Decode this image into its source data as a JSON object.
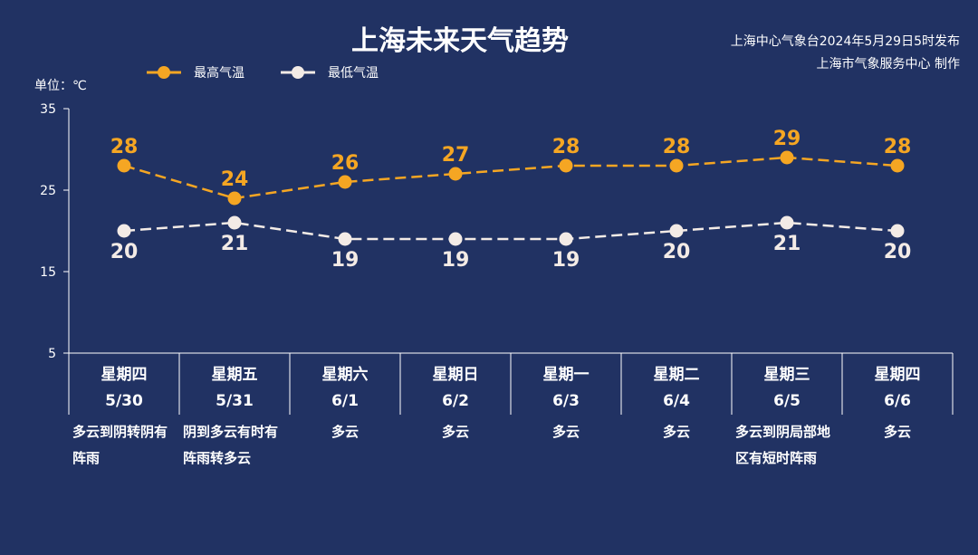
{
  "header": {
    "title": "上海未来天气趋势",
    "issuer_line1": "上海中心气象台2024年5月29日5时发布",
    "issuer_line2": "上海市气象服务中心 制作"
  },
  "legend": {
    "high_label": "最高气温",
    "low_label": "最低气温"
  },
  "unit_label": "单位：℃",
  "colors": {
    "background": "#213263",
    "high": "#f5a623",
    "low": "#f3ebe6",
    "axis": "#ffffff"
  },
  "chart_data": {
    "type": "line",
    "title": "上海未来天气趋势",
    "ylabel": "单位：℃",
    "ylim": [
      5,
      35
    ],
    "yticks": [
      5,
      15,
      25,
      35
    ],
    "grid": false,
    "legend_position": "top-left",
    "categories": [
      "星期四 5/30",
      "星期五 5/31",
      "星期六 6/1",
      "星期日 6/2",
      "星期一 6/3",
      "星期二 6/4",
      "星期三 6/5",
      "星期四 6/6"
    ],
    "series": [
      {
        "name": "最高气温",
        "values": [
          28,
          24,
          26,
          27,
          28,
          28,
          29,
          28
        ],
        "color": "#f5a623"
      },
      {
        "name": "最低气温",
        "values": [
          20,
          21,
          19,
          19,
          19,
          20,
          21,
          20
        ],
        "color": "#f3ebe6"
      }
    ]
  },
  "days": [
    {
      "weekday": "星期四",
      "date": "5/30",
      "weather": "多云到阴转阴有阵雨",
      "align": "left"
    },
    {
      "weekday": "星期五",
      "date": "5/31",
      "weather": "阴到多云有时有阵雨转多云",
      "align": "left"
    },
    {
      "weekday": "星期六",
      "date": "6/1",
      "weather": "多云",
      "align": "center"
    },
    {
      "weekday": "星期日",
      "date": "6/2",
      "weather": "多云",
      "align": "center"
    },
    {
      "weekday": "星期一",
      "date": "6/3",
      "weather": "多云",
      "align": "center"
    },
    {
      "weekday": "星期二",
      "date": "6/4",
      "weather": "多云",
      "align": "center"
    },
    {
      "weekday": "星期三",
      "date": "6/5",
      "weather": "多云到阴局部地区有短时阵雨",
      "align": "left"
    },
    {
      "weekday": "星期四",
      "date": "6/6",
      "weather": "多云",
      "align": "center"
    }
  ]
}
